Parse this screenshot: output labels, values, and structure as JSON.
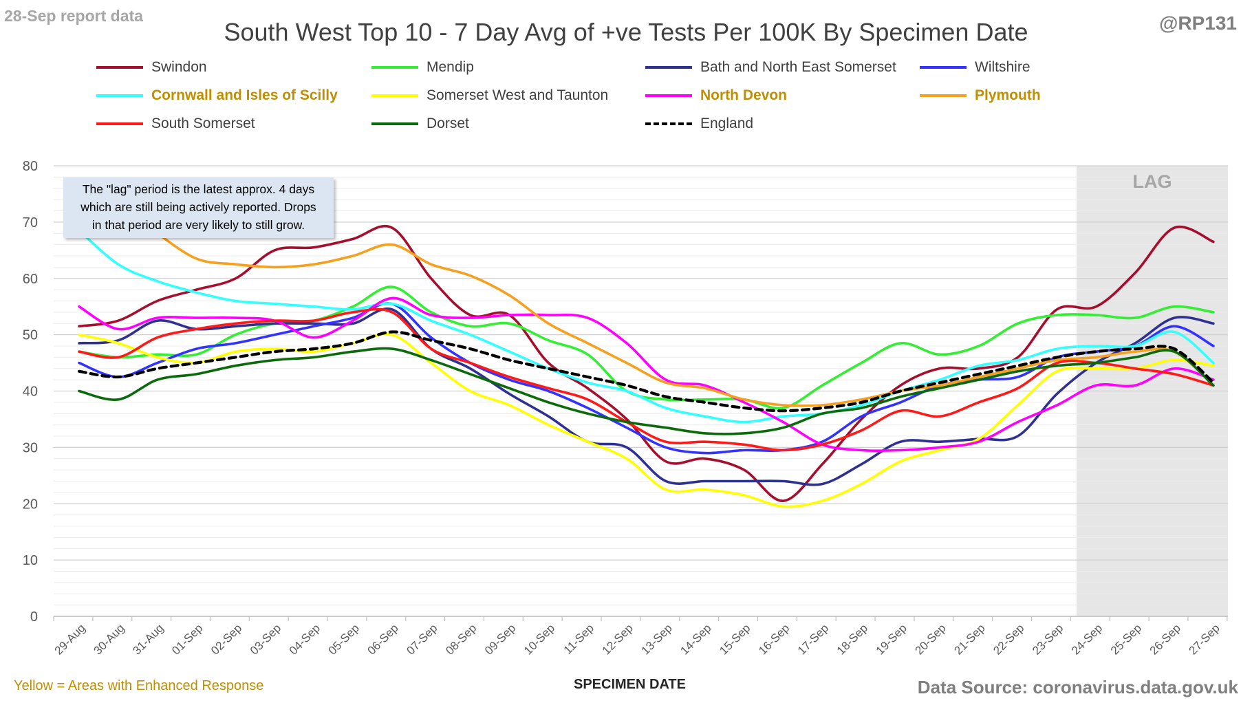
{
  "header": {
    "report_date": "28-Sep report data",
    "handle": "@RP131"
  },
  "footer": {
    "enhanced_note": "Yellow = Areas with Enhanced Response",
    "source": "Data Source: coronavirus.data.gov.uk"
  },
  "annotation": {
    "lines": [
      "The \"lag\" period is the latest approx. 4 days",
      "which are still being actively reported. Drops",
      "in that period are very likely to still grow."
    ]
  },
  "chart_data": {
    "type": "line",
    "title": "South West Top 10 - 7 Day Avg of +ve Tests Per 100K By Specimen Date",
    "xlabel": "SPECIMEN DATE",
    "ylabel": "",
    "ylim": [
      0,
      80
    ],
    "yticks": [
      0,
      10,
      20,
      30,
      40,
      50,
      60,
      70,
      80
    ],
    "grid": true,
    "legend_position": "top",
    "lag_label": "LAG",
    "lag_start": "23-Sep",
    "x": [
      "29-Aug",
      "30-Aug",
      "31-Aug",
      "01-Sep",
      "02-Sep",
      "03-Sep",
      "04-Sep",
      "05-Sep",
      "06-Sep",
      "07-Sep",
      "08-Sep",
      "09-Sep",
      "10-Sep",
      "11-Sep",
      "12-Sep",
      "13-Sep",
      "14-Sep",
      "15-Sep",
      "16-Sep",
      "17-Sep",
      "18-Sep",
      "19-Sep",
      "20-Sep",
      "21-Sep",
      "22-Sep",
      "23-Sep",
      "24-Sep",
      "25-Sep",
      "26-Sep",
      "27-Sep"
    ],
    "series": [
      {
        "name": "Swindon",
        "color": "#a50f2d",
        "dash": false,
        "highlight": false,
        "values": [
          51.5,
          52.5,
          56,
          58,
          60,
          65,
          65.5,
          67,
          69,
          60,
          53.5,
          53.5,
          45,
          40.5,
          35,
          27.5,
          28,
          26,
          20.5,
          27,
          35,
          41,
          44,
          44,
          46,
          54.5,
          55,
          61,
          69,
          66.5
        ]
      },
      {
        "name": "Mendip",
        "color": "#33ee33",
        "dash": false,
        "highlight": false,
        "values": [
          47,
          46,
          46.5,
          46.5,
          50,
          52,
          52.5,
          55,
          58.5,
          54,
          51.5,
          52,
          49,
          46.5,
          40,
          38.5,
          38.5,
          38.5,
          37,
          41,
          45,
          48.5,
          46.5,
          48,
          52,
          53.5,
          53.5,
          53,
          55,
          54
        ]
      },
      {
        "name": "Bath and North East Somerset",
        "color": "#2e3192",
        "dash": false,
        "highlight": false,
        "values": [
          48.5,
          49,
          52.5,
          51,
          51.5,
          52,
          52,
          52,
          54.5,
          47.5,
          44,
          39.5,
          35.5,
          31,
          30,
          24,
          24,
          24,
          24,
          23.5,
          27,
          31,
          31,
          31.5,
          32,
          39.5,
          45,
          48.5,
          53,
          52
        ]
      },
      {
        "name": "Wiltshire",
        "color": "#3333ff",
        "dash": false,
        "highlight": false,
        "values": [
          45,
          42.5,
          45,
          47.5,
          48.5,
          50,
          51.5,
          53,
          55.5,
          49.5,
          45,
          42,
          40,
          37,
          33.5,
          30,
          29,
          29.5,
          29.5,
          31,
          35.5,
          38,
          41,
          42,
          42.5,
          46,
          47,
          48,
          51.5,
          48
        ]
      },
      {
        "name": "Cornwall and Isles of Scilly",
        "color": "#33ffff",
        "dash": false,
        "highlight": true,
        "values": [
          68.5,
          62.5,
          59.5,
          57.5,
          56,
          55.5,
          55,
          54.5,
          55.5,
          52.5,
          50,
          47,
          44,
          41.5,
          40,
          37,
          35.5,
          34.5,
          35.5,
          36,
          37.5,
          40,
          42,
          44.5,
          45.5,
          47.5,
          48,
          48,
          50.5,
          45
        ]
      },
      {
        "name": "Somerset West and Taunton",
        "color": "#ffff00",
        "dash": false,
        "highlight": false,
        "values": [
          50,
          48.5,
          46,
          45,
          47,
          47.5,
          47,
          48.5,
          50,
          45,
          40,
          37.5,
          34,
          31,
          28,
          22.5,
          22.5,
          21.5,
          19.5,
          20.5,
          23.5,
          27.5,
          29.5,
          31.5,
          37.5,
          43.5,
          44,
          44,
          45.5,
          44.5
        ]
      },
      {
        "name": "North Devon",
        "color": "#ff00ff",
        "dash": false,
        "highlight": true,
        "values": [
          55,
          51,
          53,
          53,
          53,
          52.5,
          49.5,
          52.5,
          56.5,
          53.5,
          53,
          53.5,
          53.5,
          53,
          48.5,
          42,
          41,
          38,
          34.5,
          30.5,
          29.5,
          29.5,
          30,
          31,
          34.5,
          37.5,
          41,
          41,
          44,
          42
        ]
      },
      {
        "name": "Plymouth",
        "color": "#f5a01e",
        "dash": false,
        "highlight": true,
        "values": [
          null,
          null,
          68,
          63.5,
          62.5,
          62,
          62.5,
          64,
          66,
          62.5,
          60.5,
          57,
          52,
          48.5,
          45,
          41.5,
          40.5,
          38.5,
          37.5,
          37.5,
          38.5,
          40,
          41,
          42.5,
          44,
          45.5,
          46,
          47,
          47,
          41
        ]
      },
      {
        "name": "South Somerset",
        "color": "#ff1a1a",
        "dash": false,
        "highlight": false,
        "values": [
          47,
          46,
          49.5,
          51,
          52,
          52.5,
          52.5,
          54,
          54,
          47.5,
          45,
          42.5,
          40.5,
          38.5,
          34.5,
          31,
          31,
          30.5,
          29.5,
          30.5,
          33,
          36.5,
          35.5,
          38,
          40.5,
          45,
          45,
          44,
          43,
          41
        ]
      },
      {
        "name": "Dorset",
        "color": "#0b6b0b",
        "dash": false,
        "highlight": false,
        "values": [
          40,
          38.5,
          42,
          43,
          44.5,
          45.5,
          46,
          47,
          47.5,
          45.5,
          43,
          40.5,
          38,
          36,
          34.5,
          33.5,
          32.5,
          32.5,
          33.5,
          36,
          37,
          39,
          40.5,
          42,
          43.5,
          44.5,
          45,
          46,
          47,
          41
        ]
      },
      {
        "name": "England",
        "color": "#000000",
        "dash": true,
        "highlight": false,
        "values": [
          43.5,
          42.5,
          44,
          45,
          46,
          47,
          47.5,
          48.5,
          50.5,
          49,
          47.5,
          45.5,
          44,
          42.5,
          41,
          39,
          38,
          37,
          36.5,
          37,
          38,
          40,
          41.5,
          43,
          44.5,
          46,
          47,
          47.5,
          47.5,
          41.5
        ]
      }
    ]
  }
}
